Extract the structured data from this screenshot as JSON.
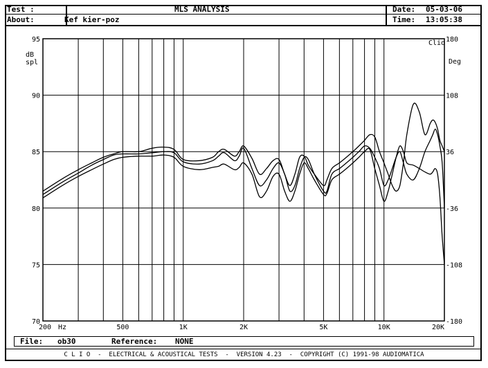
{
  "header": {
    "test_label": "Test :",
    "about_label": "About:",
    "about_value": "Kef kier-poz",
    "title": "MLS ANALYSIS",
    "date_label": "Date:",
    "date_value": "05-03-06",
    "time_label": "Time:",
    "time_value": "13:05:38"
  },
  "footer": {
    "file_label": "File:",
    "file_value": "ob30",
    "reference_label": "Reference:",
    "reference_value": "NONE",
    "copyright": "C L I O  -  ELECTRICAL & ACOUSTICAL TESTS  -  VERSION 4.23  -  COPYRIGHT (C) 1991-98 AUDIOMATICA"
  },
  "chart_data": {
    "type": "line",
    "title": "",
    "xlabel": "Hz",
    "ylabel": "dB spl",
    "y2label": "Deg",
    "corner_label": "Clio",
    "x_scale": "log",
    "xlim": [
      200,
      20000
    ],
    "ylim": [
      70,
      95
    ],
    "y2lim": [
      -180,
      180
    ],
    "grid": true,
    "x_ticks": [
      200,
      500,
      1000,
      2000,
      5000,
      10000,
      20000
    ],
    "x_tick_labels": [
      "200",
      "500",
      "1K",
      "2K",
      "5K",
      "10K",
      "20K"
    ],
    "x_grid": [
      300,
      400,
      500,
      600,
      700,
      800,
      900,
      1000,
      2000,
      3000,
      4000,
      5000,
      6000,
      7000,
      8000,
      9000,
      10000,
      20000
    ],
    "y_ticks": [
      70,
      75,
      80,
      85,
      90,
      95
    ],
    "y2_ticks": [
      -180,
      -108,
      -36,
      36,
      108,
      180
    ],
    "series": [
      {
        "x": [
          200,
          250,
          300,
          350,
          400,
          450,
          500,
          600,
          700,
          800,
          900,
          1000,
          1200,
          1400,
          1500,
          1600,
          1800,
          1900,
          2000,
          2200,
          2400,
          2600,
          2800,
          3000,
          3200,
          3400,
          3600,
          3800,
          4000,
          4200,
          4500,
          5000,
          5200,
          5500,
          6000,
          6500,
          7000,
          7500,
          8000,
          8500,
          9000,
          9500,
          10000,
          10500,
          11000,
          11500,
          12000,
          12500,
          13000,
          14000,
          15000,
          16000,
          17000,
          17500,
          18000,
          18500,
          19000,
          19500,
          20000
        ],
        "y": [
          81.5,
          82.6,
          83.4,
          84.0,
          84.5,
          84.8,
          85.0,
          85.0,
          85.3,
          85.4,
          85.2,
          84.3,
          84.2,
          84.5,
          85.0,
          85.2,
          84.6,
          85.0,
          85.5,
          84.4,
          83.0,
          83.5,
          84.2,
          84.3,
          83.0,
          82.0,
          83.0,
          84.5,
          84.6,
          83.8,
          83.0,
          82.0,
          82.5,
          83.5,
          84.0,
          84.5,
          85.0,
          85.5,
          86.0,
          86.5,
          86.3,
          85.0,
          84.0,
          83.0,
          82.0,
          81.5,
          82.0,
          84.0,
          86.5,
          89.2,
          88.5,
          86.5,
          87.5,
          87.8,
          87.6,
          87.0,
          86.0,
          85.5,
          85.0
        ]
      },
      {
        "x": [
          200,
          250,
          300,
          350,
          400,
          450,
          500,
          600,
          700,
          800,
          900,
          1000,
          1200,
          1400,
          1500,
          1600,
          1800,
          1900,
          2000,
          2200,
          2400,
          2600,
          2800,
          3000,
          3200,
          3400,
          3600,
          3800,
          4000,
          4200,
          4500,
          5000,
          5200,
          5500,
          6000,
          6500,
          7000,
          7500,
          8000,
          8500,
          9000,
          9500,
          10000,
          10500,
          11000,
          11500,
          12000,
          12500,
          13000,
          14000,
          15000,
          16000,
          17000,
          17500,
          18000,
          18500,
          19000,
          19500,
          20000
        ],
        "y": [
          81.2,
          82.3,
          83.1,
          83.8,
          84.3,
          84.7,
          84.8,
          84.8,
          84.9,
          85.0,
          84.9,
          84.1,
          83.9,
          84.2,
          84.6,
          84.9,
          84.2,
          84.6,
          85.3,
          83.5,
          82.0,
          82.5,
          83.5,
          84.0,
          83.0,
          81.5,
          82.0,
          83.5,
          84.5,
          84.3,
          83.0,
          81.5,
          81.5,
          83.0,
          83.5,
          84.0,
          84.5,
          85.0,
          85.5,
          85.3,
          84.5,
          83.5,
          82.0,
          82.5,
          83.5,
          84.5,
          85.0,
          84.0,
          83.0,
          82.5,
          83.5,
          85.0,
          86.0,
          86.5,
          87.0,
          86.5,
          85.5,
          84.0,
          80.0
        ]
      },
      {
        "x": [
          200,
          250,
          300,
          350,
          400,
          450,
          500,
          600,
          700,
          800,
          900,
          1000,
          1200,
          1400,
          1500,
          1600,
          1800,
          1900,
          2000,
          2200,
          2400,
          2600,
          2800,
          3000,
          3200,
          3400,
          3600,
          3800,
          4000,
          4200,
          4500,
          5000,
          5200,
          5500,
          6000,
          6500,
          7000,
          7500,
          8000,
          8500,
          9000,
          9500,
          10000,
          10500,
          11000,
          11500,
          12000,
          12500,
          13000,
          14000,
          15000,
          16000,
          17000,
          17500,
          18000,
          18500,
          19000,
          19500,
          20000
        ],
        "y": [
          80.9,
          82.0,
          82.8,
          83.4,
          83.9,
          84.3,
          84.5,
          84.6,
          84.6,
          84.7,
          84.5,
          83.7,
          83.4,
          83.6,
          83.7,
          83.9,
          83.4,
          83.6,
          84.0,
          83.0,
          81.0,
          81.5,
          82.8,
          83.0,
          81.5,
          80.6,
          81.5,
          83.0,
          84.0,
          83.5,
          82.5,
          81.2,
          81.3,
          82.5,
          83.0,
          83.5,
          84.0,
          84.5,
          85.0,
          85.2,
          83.5,
          82.0,
          80.6,
          81.5,
          83.0,
          84.5,
          85.5,
          85.0,
          84.0,
          83.8,
          83.5,
          83.2,
          83.0,
          83.2,
          83.5,
          83.0,
          81.0,
          77.5,
          75.0
        ]
      }
    ]
  }
}
